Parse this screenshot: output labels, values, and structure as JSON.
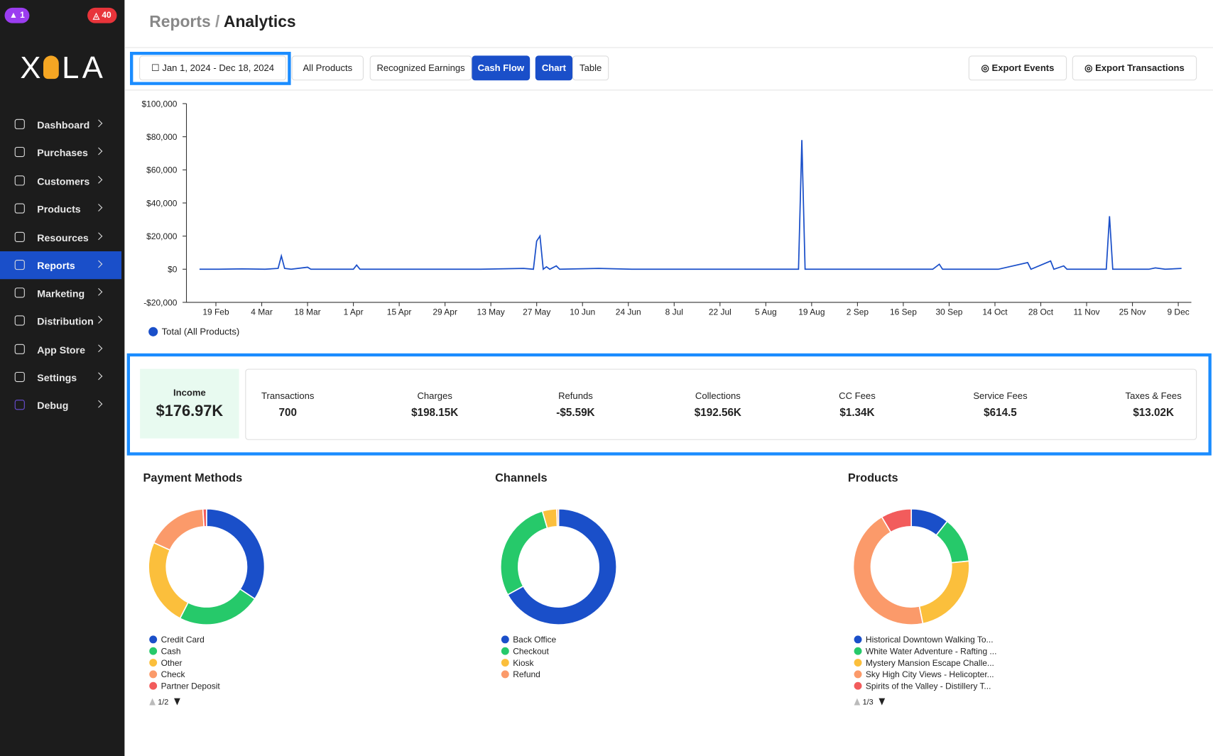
{
  "sidebar": {
    "badges": [
      "1",
      "40"
    ],
    "logo_left": "X",
    "logo_right": "LA",
    "nav": [
      "Dashboard",
      "Purchases",
      "Customers",
      "Products",
      "Resources",
      "Reports",
      "Marketing",
      "Distribution",
      "App Store",
      "Settings",
      "Debug"
    ],
    "active_nav": 5
  },
  "header": {
    "breadcrumb_parent": "Reports",
    "separator": "/",
    "title": "Analytics"
  },
  "toolbar": {
    "date_range": "Jan 1, 2024 - Dec 18, 2024",
    "product_filter": "All Products",
    "modes": [
      "Recognized Earnings",
      "Cash Flow"
    ],
    "active_mode": 1,
    "views": [
      "Chart",
      "Table"
    ],
    "active_view": 0,
    "exports": [
      "Export Events",
      "Export Transactions"
    ]
  },
  "chart_data": [
    {
      "type": "line",
      "x": [
        "14 Feb",
        "20 Feb",
        "27 Feb",
        "5 Mar",
        "9 Mar",
        "10 Mar",
        "11 Mar",
        "13 Mar",
        "18 Mar",
        "19 Mar",
        "1 Apr",
        "2 Apr",
        "3 Apr",
        "20 Apr",
        "10 May",
        "23 May",
        "26 May",
        "27 May",
        "28 May",
        "29 May",
        "30 May",
        "31 May",
        "2 Jun",
        "3 Jun",
        "15 Jun",
        "25 Jun",
        "20 Jul",
        "14 Aug",
        "15 Aug",
        "16 Aug",
        "17 Aug",
        "1 Sep",
        "25 Sep",
        "27 Sep",
        "28 Sep",
        "15 Oct",
        "24 Oct",
        "25 Oct",
        "31 Oct",
        "1 Nov",
        "4 Nov",
        "5 Nov",
        "17 Nov",
        "18 Nov",
        "19 Nov",
        "30 Nov",
        "2 Dec",
        "5 Dec",
        "10 Dec"
      ],
      "series": [
        {
          "name": "Total (All Products)",
          "color": "#1a4fc9",
          "values": [
            0,
            0,
            200,
            0,
            500,
            8000,
            500,
            0,
            1200,
            0,
            0,
            2500,
            0,
            0,
            0,
            500,
            0,
            17000,
            20000,
            0,
            1500,
            0,
            2000,
            0,
            500,
            0,
            0,
            0,
            0,
            78000,
            0,
            0,
            0,
            3000,
            0,
            0,
            4000,
            0,
            5000,
            0,
            2000,
            0,
            0,
            32000,
            0,
            0,
            800,
            0,
            500
          ]
        }
      ],
      "xlim": [
        "10 Feb",
        "13 Dec"
      ],
      "xticks": [
        "19 Feb",
        "4 Mar",
        "18 Mar",
        "1 Apr",
        "15 Apr",
        "29 Apr",
        "13 May",
        "27 May",
        "10 Jun",
        "24 Jun",
        "8 Jul",
        "22 Jul",
        "5 Aug",
        "19 Aug",
        "2 Sep",
        "16 Sep",
        "30 Sep",
        "14 Oct",
        "28 Oct",
        "11 Nov",
        "25 Nov",
        "9 Dec"
      ],
      "ylim": [
        -20000,
        100000
      ],
      "yticks": [
        {
          "value": -20000,
          "label": "-$20,000"
        },
        {
          "value": 0,
          "label": "$0"
        },
        {
          "value": 20000,
          "label": "$20,000"
        },
        {
          "value": 40000,
          "label": "$40,000"
        },
        {
          "value": 60000,
          "label": "$60,000"
        },
        {
          "value": 80000,
          "label": "$80,000"
        },
        {
          "value": 100000,
          "label": "$100,000"
        }
      ],
      "grid": false
    },
    {
      "type": "pie",
      "title": "Payment Methods",
      "categories": [
        "Credit Card",
        "Cash",
        "Other",
        "Check",
        "Partner Deposit"
      ],
      "values": [
        34,
        23,
        24,
        17,
        1
      ],
      "colors": [
        "#1a4fc9",
        "#26c96a",
        "#fbbf3c",
        "#fb9a6a",
        "#f25c5c"
      ],
      "page_label": "1/2"
    },
    {
      "type": "pie",
      "title": "Channels",
      "categories": [
        "Back Office",
        "Checkout",
        "Kiosk",
        "Refund"
      ],
      "values": [
        67,
        28.5,
        4,
        0.5
      ],
      "colors": [
        "#1a4fc9",
        "#26c96a",
        "#fbbf3c",
        "#fb9a6a"
      ]
    },
    {
      "type": "pie",
      "title": "Products",
      "categories": [
        "Historical Downtown Walking To...",
        "White Water Adventure - Rafting ...",
        "Mystery Mansion Escape Challe...",
        "Sky High City Views - Helicopter...",
        "Spirits of the Valley - Distillery T..."
      ],
      "values": [
        10,
        12,
        22,
        42,
        8
      ],
      "colors": [
        "#1a4fc9",
        "#26c96a",
        "#fbbf3c",
        "#fb9a6a",
        "#f25c5c"
      ],
      "page_label": "1/3"
    }
  ],
  "summary": {
    "income": {
      "label": "Income",
      "value": "$176.97K"
    },
    "stats": [
      {
        "label": "Transactions",
        "value": "700"
      },
      {
        "label": "Charges",
        "value": "$198.15K"
      },
      {
        "label": "Refunds",
        "value": "-$5.59K"
      },
      {
        "label": "Collections",
        "value": "$192.56K"
      },
      {
        "label": "CC Fees",
        "value": "$1.34K"
      },
      {
        "label": "Service Fees",
        "value": "$614.5"
      },
      {
        "label": "Taxes & Fees",
        "value": "$13.02K"
      }
    ]
  }
}
